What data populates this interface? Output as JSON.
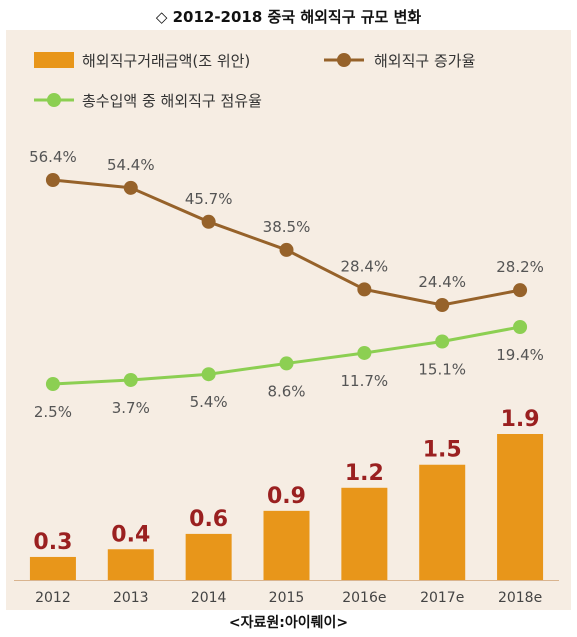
{
  "title": "◇ 2012-2018 중국 해외직구 규모 변화",
  "source": "<자료원:아이뤠이>",
  "colors": {
    "panel_bg": "#f6ede3",
    "bar": "#e8961a",
    "bar_label": "#9a2020",
    "growth_line": "#96622a",
    "share_line": "#8ccf52",
    "pct_label": "#555555",
    "axis": "#d9b48f",
    "legend_text": "#333333"
  },
  "chart_data": {
    "type": "bar",
    "categories": [
      "2012",
      "2013",
      "2014",
      "2015",
      "2016e",
      "2017e",
      "2018e"
    ],
    "series": [
      {
        "name": "해외직구거래금액(조 위안)",
        "type": "bar",
        "values": [
          0.3,
          0.4,
          0.6,
          0.9,
          1.2,
          1.5,
          1.9
        ],
        "labels": [
          "0.3",
          "0.4",
          "0.6",
          "0.9",
          "1.2",
          "1.5",
          "1.9"
        ]
      },
      {
        "name": "해외직구 증가율",
        "type": "line",
        "values": [
          56.4,
          54.4,
          45.7,
          38.5,
          28.4,
          24.4,
          28.2
        ],
        "labels": [
          "56.4%",
          "54.4%",
          "45.7%",
          "38.5%",
          "28.4%",
          "24.4%",
          "28.2%"
        ]
      },
      {
        "name": "총수입액 중 해외직구 점유율",
        "type": "line",
        "values": [
          2.5,
          3.7,
          5.4,
          8.6,
          11.7,
          15.1,
          19.4
        ],
        "labels": [
          "2.5%",
          "3.7%",
          "5.4%",
          "8.6%",
          "11.7%",
          "15.1%",
          "19.4%"
        ]
      }
    ],
    "legend_position": "top",
    "grid": false
  }
}
